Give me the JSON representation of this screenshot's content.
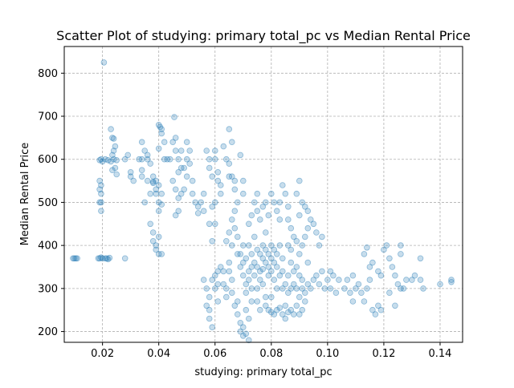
{
  "chart_data": {
    "type": "scatter",
    "title": "Scatter Plot of studying: primary total_pc vs Median Rental Price",
    "xlabel": "studying: primary total_pc",
    "ylabel": "Median Rental Price",
    "xlim": [
      0.0064,
      0.148
    ],
    "ylim": [
      175,
      862
    ],
    "x_ticks": [
      0.02,
      0.04,
      0.06,
      0.08,
      0.1,
      0.12,
      0.14
    ],
    "x_tick_labels": [
      "0.02",
      "0.04",
      "0.06",
      "0.08",
      "0.10",
      "0.12",
      "0.14"
    ],
    "y_ticks": [
      200,
      300,
      400,
      500,
      600,
      700,
      800
    ],
    "y_tick_labels": [
      "200",
      "300",
      "400",
      "500",
      "600",
      "700",
      "800"
    ],
    "grid": true,
    "marker_color": "#1f77b4",
    "marker_alpha": 0.25,
    "points": [
      [
        0.0095,
        370
      ],
      [
        0.01,
        370
      ],
      [
        0.0105,
        370
      ],
      [
        0.011,
        370
      ],
      [
        0.0185,
        370
      ],
      [
        0.019,
        370
      ],
      [
        0.0195,
        372
      ],
      [
        0.02,
        370
      ],
      [
        0.021,
        370
      ],
      [
        0.0215,
        370
      ],
      [
        0.022,
        368
      ],
      [
        0.0225,
        371
      ],
      [
        0.028,
        370
      ],
      [
        0.0205,
        825
      ],
      [
        0.019,
        598
      ],
      [
        0.0195,
        600
      ],
      [
        0.02,
        595
      ],
      [
        0.021,
        600
      ],
      [
        0.022,
        598
      ],
      [
        0.023,
        595
      ],
      [
        0.024,
        600
      ],
      [
        0.025,
        598
      ],
      [
        0.0235,
        610
      ],
      [
        0.024,
        620
      ],
      [
        0.0245,
        630
      ],
      [
        0.0235,
        650
      ],
      [
        0.024,
        648
      ],
      [
        0.023,
        670
      ],
      [
        0.0245,
        580
      ],
      [
        0.025,
        565
      ],
      [
        0.0235,
        575
      ],
      [
        0.019,
        550
      ],
      [
        0.0195,
        540
      ],
      [
        0.019,
        530
      ],
      [
        0.0195,
        520
      ],
      [
        0.0195,
        500
      ],
      [
        0.019,
        500
      ],
      [
        0.0195,
        480
      ],
      [
        0.028,
        600
      ],
      [
        0.029,
        610
      ],
      [
        0.03,
        560
      ],
      [
        0.031,
        550
      ],
      [
        0.03,
        570
      ],
      [
        0.033,
        600
      ],
      [
        0.034,
        640
      ],
      [
        0.034,
        600
      ],
      [
        0.035,
        620
      ],
      [
        0.036,
        610
      ],
      [
        0.034,
        575
      ],
      [
        0.034,
        560
      ],
      [
        0.036,
        600
      ],
      [
        0.037,
        590
      ],
      [
        0.038,
        560
      ],
      [
        0.038,
        545
      ],
      [
        0.036,
        550
      ],
      [
        0.035,
        500
      ],
      [
        0.037,
        520
      ],
      [
        0.038,
        548
      ],
      [
        0.039,
        550
      ],
      [
        0.04,
        540
      ],
      [
        0.039,
        520
      ],
      [
        0.04,
        500
      ],
      [
        0.041,
        495
      ],
      [
        0.04,
        480
      ],
      [
        0.039,
        530
      ],
      [
        0.041,
        520
      ],
      [
        0.037,
        450
      ],
      [
        0.038,
        430
      ],
      [
        0.038,
        410
      ],
      [
        0.039,
        400
      ],
      [
        0.039,
        390
      ],
      [
        0.04,
        380
      ],
      [
        0.041,
        380
      ],
      [
        0.04,
        420
      ],
      [
        0.04,
        680
      ],
      [
        0.0405,
        675
      ],
      [
        0.041,
        670
      ],
      [
        0.041,
        660
      ],
      [
        0.042,
        640
      ],
      [
        0.04,
        625
      ],
      [
        0.042,
        600
      ],
      [
        0.043,
        600
      ],
      [
        0.044,
        600
      ],
      [
        0.045,
        640
      ],
      [
        0.046,
        620
      ],
      [
        0.046,
        650
      ],
      [
        0.0455,
        698
      ],
      [
        0.047,
        600
      ],
      [
        0.048,
        620
      ],
      [
        0.048,
        580
      ],
      [
        0.047,
        570
      ],
      [
        0.045,
        550
      ],
      [
        0.046,
        530
      ],
      [
        0.047,
        510
      ],
      [
        0.048,
        520
      ],
      [
        0.049,
        580
      ],
      [
        0.05,
        600
      ],
      [
        0.05,
        640
      ],
      [
        0.051,
        620
      ],
      [
        0.051,
        590
      ],
      [
        0.05,
        560
      ],
      [
        0.049,
        530
      ],
      [
        0.047,
        480
      ],
      [
        0.046,
        470
      ],
      [
        0.052,
        550
      ],
      [
        0.052,
        520
      ],
      [
        0.053,
        500
      ],
      [
        0.054,
        490
      ],
      [
        0.054,
        475
      ],
      [
        0.055,
        500
      ],
      [
        0.056,
        480
      ],
      [
        0.056,
        520
      ],
      [
        0.057,
        620
      ],
      [
        0.058,
        600
      ],
      [
        0.058,
        580
      ],
      [
        0.059,
        560
      ],
      [
        0.06,
        600
      ],
      [
        0.06,
        620
      ],
      [
        0.061,
        570
      ],
      [
        0.061,
        550
      ],
      [
        0.062,
        540
      ],
      [
        0.062,
        520
      ],
      [
        0.06,
        500
      ],
      [
        0.059,
        490
      ],
      [
        0.058,
        450
      ],
      [
        0.059,
        410
      ],
      [
        0.06,
        450
      ],
      [
        0.063,
        630
      ],
      [
        0.064,
        600
      ],
      [
        0.065,
        560
      ],
      [
        0.065,
        670
      ],
      [
        0.066,
        640
      ],
      [
        0.065,
        590
      ],
      [
        0.066,
        560
      ],
      [
        0.067,
        550
      ],
      [
        0.067,
        530
      ],
      [
        0.068,
        500
      ],
      [
        0.069,
        610
      ],
      [
        0.07,
        550
      ],
      [
        0.07,
        520
      ],
      [
        0.056,
        320
      ],
      [
        0.057,
        300
      ],
      [
        0.058,
        280
      ],
      [
        0.057,
        260
      ],
      [
        0.058,
        230
      ],
      [
        0.059,
        210
      ],
      [
        0.058,
        250
      ],
      [
        0.059,
        320
      ],
      [
        0.06,
        330
      ],
      [
        0.06,
        300
      ],
      [
        0.061,
        340
      ],
      [
        0.061,
        310
      ],
      [
        0.062,
        350
      ],
      [
        0.061,
        270
      ],
      [
        0.063,
        340
      ],
      [
        0.063,
        310
      ],
      [
        0.064,
        300
      ],
      [
        0.064,
        280
      ],
      [
        0.065,
        360
      ],
      [
        0.065,
        340
      ],
      [
        0.066,
        320
      ],
      [
        0.066,
        400
      ],
      [
        0.064,
        410
      ],
      [
        0.065,
        430
      ],
      [
        0.066,
        460
      ],
      [
        0.067,
        480
      ],
      [
        0.067,
        440
      ],
      [
        0.068,
        420
      ],
      [
        0.068,
        380
      ],
      [
        0.066,
        290
      ],
      [
        0.067,
        260
      ],
      [
        0.068,
        270
      ],
      [
        0.068,
        240
      ],
      [
        0.069,
        220
      ],
      [
        0.069,
        200
      ],
      [
        0.07,
        190
      ],
      [
        0.07,
        210
      ],
      [
        0.071,
        195
      ],
      [
        0.072,
        180
      ],
      [
        0.072,
        230
      ],
      [
        0.071,
        250
      ],
      [
        0.069,
        380
      ],
      [
        0.069,
        350
      ],
      [
        0.07,
        400
      ],
      [
        0.07,
        360
      ],
      [
        0.07,
        330
      ],
      [
        0.071,
        310
      ],
      [
        0.071,
        290
      ],
      [
        0.071,
        370
      ],
      [
        0.072,
        340
      ],
      [
        0.072,
        320
      ],
      [
        0.072,
        400
      ],
      [
        0.073,
        380
      ],
      [
        0.073,
        350
      ],
      [
        0.073,
        300
      ],
      [
        0.073,
        270
      ],
      [
        0.074,
        420
      ],
      [
        0.074,
        360
      ],
      [
        0.074,
        330
      ],
      [
        0.075,
        390
      ],
      [
        0.075,
        350
      ],
      [
        0.075,
        300
      ],
      [
        0.075,
        270
      ],
      [
        0.076,
        380
      ],
      [
        0.076,
        340
      ],
      [
        0.076,
        320
      ],
      [
        0.076,
        250
      ],
      [
        0.077,
        400
      ],
      [
        0.077,
        370
      ],
      [
        0.077,
        345
      ],
      [
        0.077,
        310
      ],
      [
        0.078,
        390
      ],
      [
        0.078,
        360
      ],
      [
        0.078,
        280
      ],
      [
        0.078,
        430
      ],
      [
        0.079,
        380
      ],
      [
        0.079,
        350
      ],
      [
        0.079,
        330
      ],
      [
        0.08,
        400
      ],
      [
        0.08,
        370
      ],
      [
        0.08,
        340
      ],
      [
        0.08,
        280
      ],
      [
        0.081,
        390
      ],
      [
        0.081,
        360
      ],
      [
        0.081,
        320
      ],
      [
        0.082,
        380
      ],
      [
        0.082,
        350
      ],
      [
        0.082,
        300
      ],
      [
        0.083,
        400
      ],
      [
        0.083,
        330
      ],
      [
        0.084,
        370
      ],
      [
        0.084,
        340
      ],
      [
        0.072,
        450
      ],
      [
        0.073,
        470
      ],
      [
        0.074,
        500
      ],
      [
        0.075,
        480
      ],
      [
        0.075,
        520
      ],
      [
        0.076,
        460
      ],
      [
        0.077,
        490
      ],
      [
        0.078,
        500
      ],
      [
        0.079,
        470
      ],
      [
        0.08,
        520
      ],
      [
        0.081,
        500
      ],
      [
        0.082,
        480
      ],
      [
        0.083,
        460
      ],
      [
        0.083,
        500
      ],
      [
        0.084,
        540
      ],
      [
        0.085,
        520
      ],
      [
        0.086,
        490
      ],
      [
        0.086,
        460
      ],
      [
        0.087,
        440
      ],
      [
        0.078,
        260
      ],
      [
        0.079,
        250
      ],
      [
        0.08,
        245
      ],
      [
        0.081,
        240
      ],
      [
        0.082,
        250
      ],
      [
        0.083,
        255
      ],
      [
        0.084,
        240
      ],
      [
        0.085,
        260
      ],
      [
        0.085,
        230
      ],
      [
        0.086,
        245
      ],
      [
        0.087,
        250
      ],
      [
        0.088,
        240
      ],
      [
        0.089,
        260
      ],
      [
        0.09,
        240
      ],
      [
        0.091,
        250
      ],
      [
        0.092,
        270
      ],
      [
        0.084,
        300
      ],
      [
        0.085,
        310
      ],
      [
        0.086,
        290
      ],
      [
        0.086,
        330
      ],
      [
        0.087,
        360
      ],
      [
        0.087,
        300
      ],
      [
        0.088,
        340
      ],
      [
        0.088,
        310
      ],
      [
        0.089,
        350
      ],
      [
        0.089,
        300
      ],
      [
        0.09,
        330
      ],
      [
        0.09,
        280
      ],
      [
        0.091,
        300
      ],
      [
        0.091,
        320
      ],
      [
        0.092,
        290
      ],
      [
        0.093,
        310
      ],
      [
        0.093,
        360
      ],
      [
        0.094,
        300
      ],
      [
        0.095,
        320
      ],
      [
        0.086,
        400
      ],
      [
        0.087,
        390
      ],
      [
        0.088,
        420
      ],
      [
        0.089,
        410
      ],
      [
        0.09,
        380
      ],
      [
        0.091,
        400
      ],
      [
        0.092,
        420
      ],
      [
        0.093,
        440
      ],
      [
        0.094,
        460
      ],
      [
        0.095,
        450
      ],
      [
        0.096,
        430
      ],
      [
        0.097,
        400
      ],
      [
        0.098,
        420
      ],
      [
        0.089,
        520
      ],
      [
        0.09,
        550
      ],
      [
        0.091,
        500
      ],
      [
        0.092,
        490
      ],
      [
        0.09,
        470
      ],
      [
        0.093,
        480
      ],
      [
        0.096,
        330
      ],
      [
        0.097,
        310
      ],
      [
        0.098,
        340
      ],
      [
        0.099,
        300
      ],
      [
        0.1,
        320
      ],
      [
        0.101,
        340
      ],
      [
        0.101,
        300
      ],
      [
        0.102,
        330
      ],
      [
        0.103,
        290
      ],
      [
        0.104,
        320
      ],
      [
        0.106,
        300
      ],
      [
        0.107,
        320
      ],
      [
        0.108,
        290
      ],
      [
        0.109,
        270
      ],
      [
        0.109,
        330
      ],
      [
        0.11,
        300
      ],
      [
        0.111,
        310
      ],
      [
        0.112,
        290
      ],
      [
        0.113,
        270
      ],
      [
        0.114,
        300
      ],
      [
        0.115,
        320
      ],
      [
        0.116,
        250
      ],
      [
        0.117,
        240
      ],
      [
        0.113,
        380
      ],
      [
        0.114,
        395
      ],
      [
        0.115,
        350
      ],
      [
        0.116,
        360
      ],
      [
        0.118,
        340
      ],
      [
        0.119,
        330
      ],
      [
        0.12,
        390
      ],
      [
        0.121,
        400
      ],
      [
        0.122,
        370
      ],
      [
        0.123,
        350
      ],
      [
        0.124,
        330
      ],
      [
        0.125,
        310
      ],
      [
        0.126,
        380
      ],
      [
        0.126,
        400
      ],
      [
        0.127,
        300
      ],
      [
        0.128,
        320
      ],
      [
        0.118,
        260
      ],
      [
        0.119,
        250
      ],
      [
        0.122,
        290
      ],
      [
        0.124,
        260
      ],
      [
        0.126,
        300
      ],
      [
        0.13,
        320
      ],
      [
        0.131,
        330
      ],
      [
        0.133,
        370
      ],
      [
        0.133,
        320
      ],
      [
        0.134,
        300
      ],
      [
        0.14,
        310
      ],
      [
        0.144,
        320
      ],
      [
        0.144,
        315
      ]
    ]
  }
}
